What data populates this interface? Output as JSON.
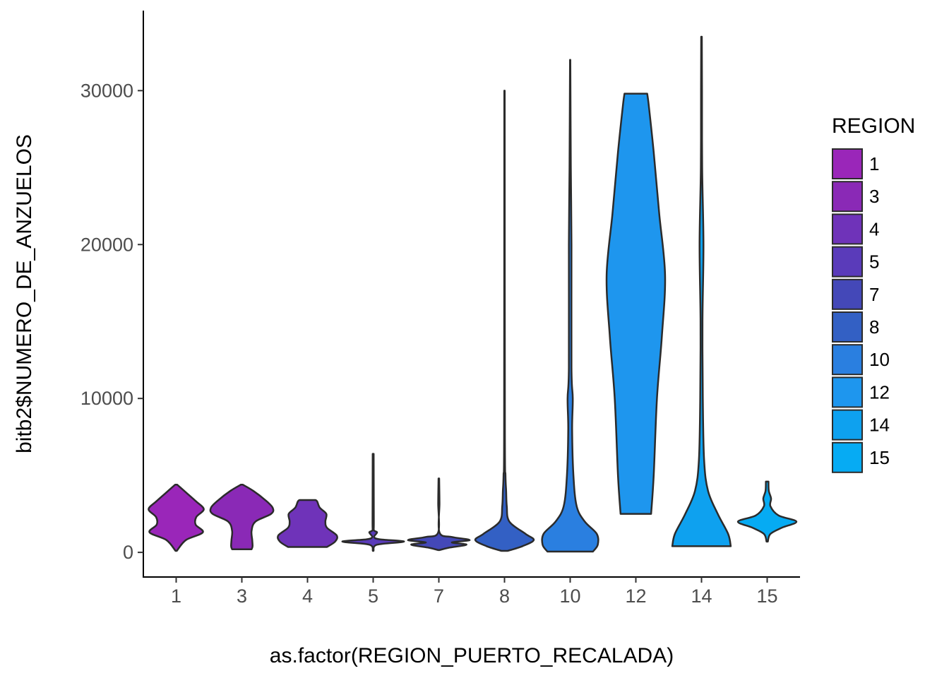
{
  "chart_data": {
    "type": "violin",
    "xlabel": "as.factor(REGION_PUERTO_RECALADA)",
    "ylabel": "bitb2$NUMERO_DE_ANZUELOS",
    "ylim": [
      -1600,
      35200
    ],
    "yticks": [
      0,
      10000,
      20000,
      30000
    ],
    "categories": [
      "1",
      "3",
      "4",
      "5",
      "7",
      "8",
      "10",
      "12",
      "14",
      "15"
    ],
    "legend": {
      "title": "REGION",
      "placement": "right",
      "items": [
        {
          "label": "1",
          "color": "#9A26B9"
        },
        {
          "label": "3",
          "color": "#8A29B6"
        },
        {
          "label": "4",
          "color": "#6F33B9"
        },
        {
          "label": "5",
          "color": "#5A3BBA"
        },
        {
          "label": "7",
          "color": "#4448B8"
        },
        {
          "label": "8",
          "color": "#3360C4"
        },
        {
          "label": "10",
          "color": "#2A7FE0"
        },
        {
          "label": "12",
          "color": "#1E96EE"
        },
        {
          "label": "14",
          "color": "#0EA1EF"
        },
        {
          "label": "15",
          "color": "#06ABF3"
        }
      ]
    },
    "violins": [
      {
        "category": "1",
        "color": "#9A26B9",
        "profile": [
          [
            100,
            0.02
          ],
          [
            800,
            0.3
          ],
          [
            1300,
            0.82
          ],
          [
            1800,
            0.6
          ],
          [
            2300,
            0.62
          ],
          [
            2800,
            0.85
          ],
          [
            3300,
            0.62
          ],
          [
            3900,
            0.3
          ],
          [
            4400,
            0.03
          ]
        ]
      },
      {
        "category": "3",
        "color": "#8A29B6",
        "profile": [
          [
            200,
            0.3
          ],
          [
            400,
            0.33
          ],
          [
            800,
            0.32
          ],
          [
            1400,
            0.3
          ],
          [
            2000,
            0.42
          ],
          [
            2500,
            0.9
          ],
          [
            2900,
            0.95
          ],
          [
            3400,
            0.72
          ],
          [
            4000,
            0.35
          ],
          [
            4400,
            0.03
          ]
        ]
      },
      {
        "category": "4",
        "color": "#6F33B9",
        "profile": [
          [
            350,
            0.6
          ],
          [
            700,
            0.85
          ],
          [
            1100,
            0.9
          ],
          [
            1600,
            0.6
          ],
          [
            2000,
            0.55
          ],
          [
            2500,
            0.58
          ],
          [
            2900,
            0.38
          ],
          [
            3300,
            0.3
          ],
          [
            3400,
            0.25
          ]
        ]
      },
      {
        "category": "5",
        "color": "#5A3BBA",
        "profile": [
          [
            100,
            0.01
          ],
          [
            500,
            0.12
          ],
          [
            700,
            0.95
          ],
          [
            850,
            0.2
          ],
          [
            1000,
            0.03
          ],
          [
            1300,
            0.12
          ],
          [
            1450,
            0.02
          ],
          [
            2000,
            0.02
          ],
          [
            6400,
            0.015
          ]
        ]
      },
      {
        "category": "7",
        "color": "#4448B8",
        "profile": [
          [
            150,
            0.02
          ],
          [
            300,
            0.3
          ],
          [
            500,
            0.85
          ],
          [
            650,
            0.4
          ],
          [
            800,
            0.95
          ],
          [
            1000,
            0.4
          ],
          [
            1300,
            0.02
          ],
          [
            3200,
            0.02
          ],
          [
            4800,
            0.01
          ]
        ]
      },
      {
        "category": "8",
        "color": "#3360C4",
        "profile": [
          [
            100,
            0.1
          ],
          [
            400,
            0.55
          ],
          [
            800,
            0.9
          ],
          [
            1200,
            0.65
          ],
          [
            2000,
            0.15
          ],
          [
            3000,
            0.07
          ],
          [
            4000,
            0.05
          ],
          [
            5000,
            0.03
          ],
          [
            8000,
            0.012
          ],
          [
            30000,
            0.006
          ]
        ]
      },
      {
        "category": "10",
        "color": "#2A7FE0",
        "profile": [
          [
            50,
            0.7
          ],
          [
            500,
            0.85
          ],
          [
            1200,
            0.82
          ],
          [
            2000,
            0.45
          ],
          [
            3000,
            0.2
          ],
          [
            5000,
            0.1
          ],
          [
            8000,
            0.06
          ],
          [
            10000,
            0.08
          ],
          [
            12000,
            0.04
          ],
          [
            20000,
            0.04
          ],
          [
            25000,
            0.02
          ],
          [
            32000,
            0.005
          ]
        ]
      },
      {
        "category": "12",
        "color": "#1E96EE",
        "profile": [
          [
            2500,
            0.47
          ],
          [
            5000,
            0.55
          ],
          [
            10000,
            0.65
          ],
          [
            14000,
            0.8
          ],
          [
            18000,
            0.9
          ],
          [
            22000,
            0.72
          ],
          [
            26000,
            0.55
          ],
          [
            29000,
            0.4
          ],
          [
            29800,
            0.35
          ]
        ]
      },
      {
        "category": "14",
        "color": "#0EA1EF",
        "profile": [
          [
            400,
            0.9
          ],
          [
            1200,
            0.82
          ],
          [
            2500,
            0.5
          ],
          [
            4000,
            0.2
          ],
          [
            6000,
            0.08
          ],
          [
            10000,
            0.04
          ],
          [
            15000,
            0.03
          ],
          [
            20000,
            0.06
          ],
          [
            25000,
            0.02
          ],
          [
            30000,
            0.015
          ],
          [
            33500,
            0.01
          ]
        ]
      },
      {
        "category": "15",
        "color": "#06ABF3",
        "profile": [
          [
            700,
            0.02
          ],
          [
            1200,
            0.1
          ],
          [
            1600,
            0.45
          ],
          [
            2000,
            0.9
          ],
          [
            2400,
            0.35
          ],
          [
            3000,
            0.1
          ],
          [
            3500,
            0.12
          ],
          [
            4000,
            0.05
          ],
          [
            4600,
            0.04
          ]
        ]
      }
    ]
  }
}
